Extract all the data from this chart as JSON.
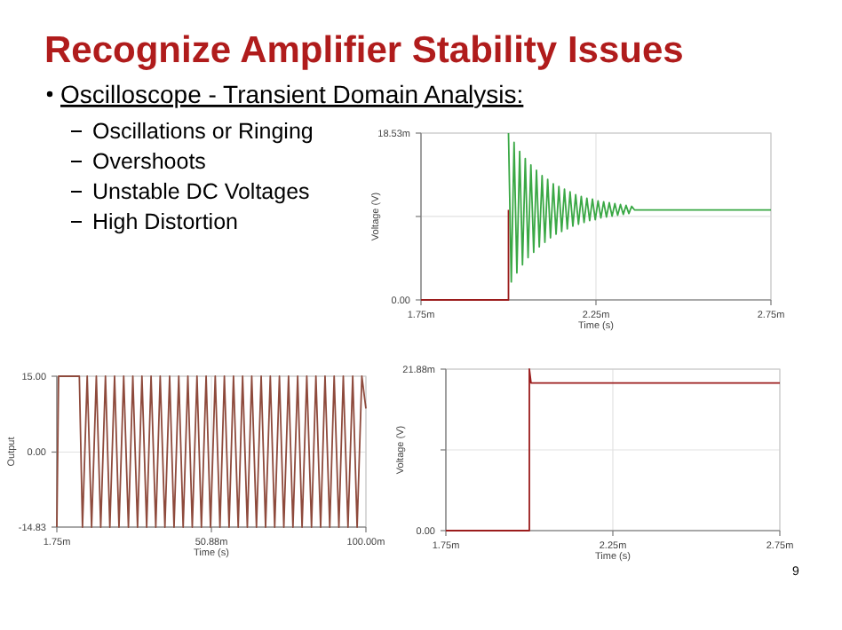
{
  "chart_data": [
    {
      "type": "other",
      "title": "Recognize Amplifier Stability Issues",
      "subtitle": "Oscilloscope - Transient Domain Analysis:",
      "annotations": [
        "Oscillations or Ringing",
        "Overshoots",
        "Unstable DC Voltages",
        "High Distortion",
        "9"
      ]
    },
    {
      "type": "line",
      "xlabel": "Time (s)",
      "ylabel": "Voltage (V)",
      "xlim": [
        1.75,
        2.75
      ],
      "ylim": [
        0,
        18.53
      ],
      "xticks": [
        {
          "value": 1.75,
          "label": "1.75m"
        },
        {
          "value": 2.25,
          "label": "2.25m"
        },
        {
          "value": 2.75,
          "label": "2.75m"
        }
      ],
      "yticks": [
        {
          "value": 0,
          "label": "0.00"
        },
        {
          "value": 9.27,
          "label": null
        },
        {
          "value": 18.53,
          "label": "18.53m"
        }
      ],
      "grid": true,
      "series": [
        {
          "color": "#9b1c1c",
          "x": [
            1.75,
            2.0,
            2.0
          ],
          "values": [
            0,
            0,
            10.0
          ]
        },
        {
          "color": "#3aa845",
          "x": [
            2.0,
            2.008,
            2.016,
            2.024,
            2.032,
            2.04,
            2.048,
            2.056,
            2.064,
            2.072,
            2.08,
            2.088,
            2.096,
            2.104,
            2.112,
            2.12,
            2.128,
            2.136,
            2.144,
            2.152,
            2.16,
            2.168,
            2.176,
            2.184,
            2.192,
            2.2,
            2.208,
            2.216,
            2.224,
            2.232,
            2.24,
            2.248,
            2.256,
            2.264,
            2.272,
            2.28,
            2.288,
            2.296,
            2.304,
            2.312,
            2.32,
            2.328,
            2.336,
            2.344,
            2.352,
            2.36,
            2.75
          ],
          "values": [
            18.53,
            2.0,
            17.5,
            3.0,
            16.5,
            3.9,
            15.7,
            4.7,
            15.0,
            5.3,
            14.4,
            5.9,
            13.8,
            6.4,
            13.4,
            6.9,
            12.9,
            7.3,
            12.6,
            7.6,
            12.3,
            7.9,
            12.0,
            8.2,
            11.7,
            8.4,
            11.5,
            8.6,
            11.3,
            8.8,
            11.2,
            8.9,
            11.0,
            9.1,
            10.9,
            9.2,
            10.8,
            9.3,
            10.7,
            9.4,
            10.6,
            9.5,
            10.5,
            9.6,
            10.4,
            10.0,
            10.0
          ]
        }
      ]
    },
    {
      "type": "line",
      "xlabel": "Time (s)",
      "ylabel": "Output",
      "xlim": [
        1.75,
        100
      ],
      "ylim": [
        -14.83,
        15
      ],
      "xticks": [
        {
          "value": 1.75,
          "label": "1.75m"
        },
        {
          "value": 50.88,
          "label": "50.88m"
        },
        {
          "value": 100,
          "label": "100.00m"
        }
      ],
      "yticks": [
        {
          "value": -14.83,
          "label": "-14.83"
        },
        {
          "value": 0,
          "label": "0.00"
        },
        {
          "value": 15,
          "label": "15.00"
        }
      ],
      "grid": true,
      "series": [
        {
          "color": "#8e4a3c",
          "x": [
            1.75,
            2.3,
            8.9,
            9.9,
            11.4,
            12.8,
            14.3,
            15.7,
            17.2,
            18.6,
            20.1,
            21.5,
            23.0,
            24.5,
            25.9,
            27.4,
            28.8,
            30.3,
            31.7,
            33.2,
            34.6,
            36.1,
            37.6,
            39.0,
            40.5,
            41.9,
            43.4,
            44.8,
            46.3,
            47.7,
            49.2,
            50.6,
            52.1,
            53.6,
            55.0,
            56.5,
            57.9,
            59.4,
            60.8,
            62.3,
            63.7,
            65.2,
            66.7,
            68.1,
            69.6,
            71.0,
            72.5,
            73.9,
            75.4,
            76.8,
            78.3,
            79.7,
            81.2,
            82.7,
            84.1,
            85.6,
            87.0,
            88.5,
            89.9,
            91.4,
            92.8,
            94.3,
            95.8,
            97.2,
            98.7,
            100
          ],
          "values": [
            -14.83,
            15,
            15,
            -14.83,
            15,
            -14.83,
            15,
            -14.83,
            15,
            -14.83,
            15,
            -14.83,
            15,
            -14.83,
            15,
            -14.83,
            15,
            -14.83,
            15,
            -14.83,
            15,
            -14.83,
            15,
            -14.83,
            15,
            -14.83,
            15,
            -14.83,
            15,
            -14.83,
            15,
            -14.83,
            15,
            -14.83,
            15,
            -14.83,
            15,
            -14.83,
            15,
            -14.83,
            15,
            -14.83,
            15,
            -14.83,
            15,
            -14.83,
            15,
            -14.83,
            15,
            -14.83,
            15,
            -14.83,
            15,
            -14.83,
            15,
            -14.83,
            15,
            -14.83,
            15,
            -14.83,
            15,
            -14.83,
            15,
            -14.83,
            15,
            8.6
          ]
        }
      ]
    },
    {
      "type": "line",
      "xlabel": "Time (s)",
      "ylabel": "Voltage (V)",
      "xlim": [
        1.75,
        2.75
      ],
      "ylim": [
        0,
        21.88
      ],
      "xticks": [
        {
          "value": 1.75,
          "label": "1.75m"
        },
        {
          "value": 2.25,
          "label": "2.25m"
        },
        {
          "value": 2.75,
          "label": "2.75m"
        }
      ],
      "yticks": [
        {
          "value": 0,
          "label": "0.00"
        },
        {
          "value": 10.94,
          "label": null
        },
        {
          "value": 21.88,
          "label": "21.88m"
        }
      ],
      "grid": true,
      "series": [
        {
          "color": "#9b1c1c",
          "x": [
            1.75,
            2.0,
            2.0,
            2.005,
            2.75
          ],
          "values": [
            0,
            0,
            21.88,
            20.0,
            20.0
          ]
        }
      ]
    }
  ]
}
